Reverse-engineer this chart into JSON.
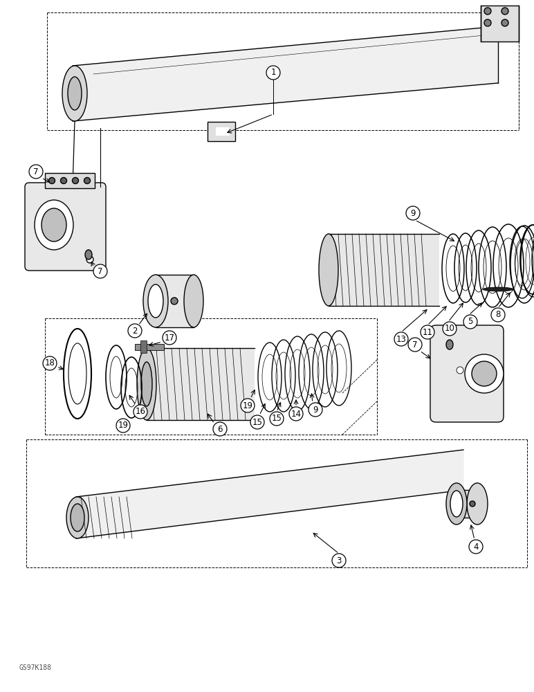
{
  "bg_color": "#ffffff",
  "line_color": "#000000",
  "figure_width": 7.72,
  "figure_height": 10.0,
  "dpi": 100,
  "watermark": "GS97K188"
}
